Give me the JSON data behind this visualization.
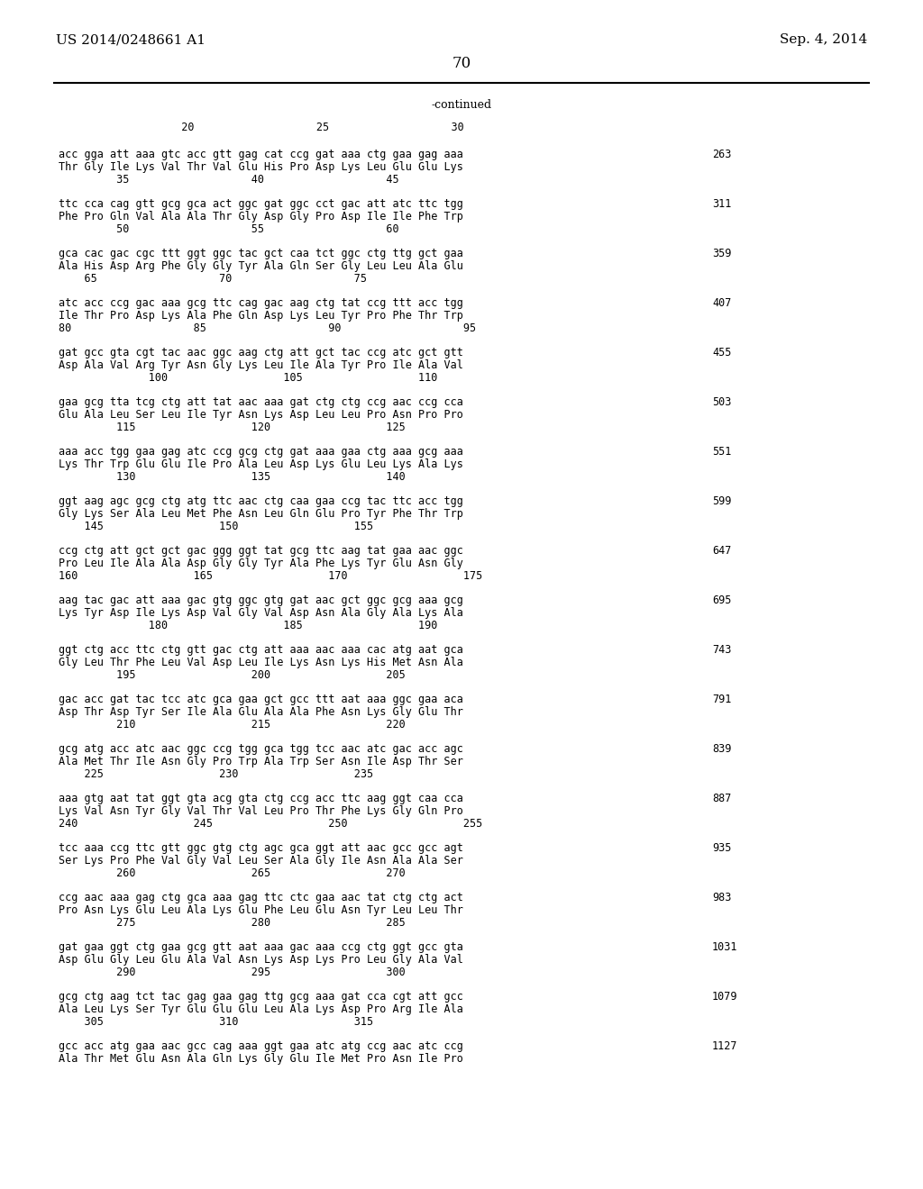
{
  "patent_number": "US 2014/0248661 A1",
  "date": "Sep. 4, 2014",
  "page_number": "70",
  "continued_label": "-continued",
  "background_color": "#ffffff",
  "text_color": "#000000",
  "ruler_numbers": "          20                   25                   30",
  "sequence_blocks": [
    {
      "dna": "acc gga att aaa gtc acc gtt gag cat ccg gat aaa ctg gaa gag aaa",
      "aa": "Thr Gly Ile Lys Val Thr Val Glu His Pro Asp Lys Leu Glu Glu Lys",
      "pos": "         35                   40                   45",
      "num": "263"
    },
    {
      "dna": "ttc cca cag gtt gcg gca act ggc gat ggc cct gac att atc ttc tgg",
      "aa": "Phe Pro Gln Val Ala Ala Thr Gly Asp Gly Pro Asp Ile Ile Phe Trp",
      "pos": "         50                   55                   60",
      "num": "311"
    },
    {
      "dna": "gca cac gac cgc ttt ggt ggc tac gct caa tct ggc ctg ttg gct gaa",
      "aa": "Ala His Asp Arg Phe Gly Gly Tyr Ala Gln Ser Gly Leu Leu Ala Glu",
      "pos": "    65                   70                   75",
      "num": "359"
    },
    {
      "dna": "atc acc ccg gac aaa gcg ttc cag gac aag ctg tat ccg ttt acc tgg",
      "aa": "Ile Thr Pro Asp Lys Ala Phe Gln Asp Lys Leu Tyr Pro Phe Thr Trp",
      "pos": "80                   85                   90                   95",
      "num": "407"
    },
    {
      "dna": "gat gcc gta cgt tac aac ggc aag ctg att gct tac ccg atc gct gtt",
      "aa": "Asp Ala Val Arg Tyr Asn Gly Lys Leu Ile Ala Tyr Pro Ile Ala Val",
      "pos": "              100                  105                  110",
      "num": "455"
    },
    {
      "dna": "gaa gcg tta tcg ctg att tat aac aaa gat ctg ctg ccg aac ccg cca",
      "aa": "Glu Ala Leu Ser Leu Ile Tyr Asn Lys Asp Leu Leu Pro Asn Pro Pro",
      "pos": "         115                  120                  125",
      "num": "503"
    },
    {
      "dna": "aaa acc tgg gaa gag atc ccg gcg ctg gat aaa gaa ctg aaa gcg aaa",
      "aa": "Lys Thr Trp Glu Glu Ile Pro Ala Leu Asp Lys Glu Leu Lys Ala Lys",
      "pos": "         130                  135                  140",
      "num": "551"
    },
    {
      "dna": "ggt aag agc gcg ctg atg ttc aac ctg caa gaa ccg tac ttc acc tgg",
      "aa": "Gly Lys Ser Ala Leu Met Phe Asn Leu Gln Glu Pro Tyr Phe Thr Trp",
      "pos": "    145                  150                  155",
      "num": "599"
    },
    {
      "dna": "ccg ctg att gct gct gac ggg ggt tat gcg ttc aag tat gaa aac ggc",
      "aa": "Pro Leu Ile Ala Ala Asp Gly Gly Tyr Ala Phe Lys Tyr Glu Asn Gly",
      "pos": "160                  165                  170                  175",
      "num": "647"
    },
    {
      "dna": "aag tac gac att aaa gac gtg ggc gtg gat aac gct ggc gcg aaa gcg",
      "aa": "Lys Tyr Asp Ile Lys Asp Val Gly Val Asp Asn Ala Gly Ala Lys Ala",
      "pos": "              180                  185                  190",
      "num": "695"
    },
    {
      "dna": "ggt ctg acc ttc ctg gtt gac ctg att aaa aac aaa cac atg aat gca",
      "aa": "Gly Leu Thr Phe Leu Val Asp Leu Ile Lys Asn Lys His Met Asn Ala",
      "pos": "         195                  200                  205",
      "num": "743"
    },
    {
      "dna": "gac acc gat tac tcc atc gca gaa gct gcc ttt aat aaa ggc gaa aca",
      "aa": "Asp Thr Asp Tyr Ser Ile Ala Glu Ala Ala Phe Asn Lys Gly Glu Thr",
      "pos": "         210                  215                  220",
      "num": "791"
    },
    {
      "dna": "gcg atg acc atc aac ggc ccg tgg gca tgg tcc aac atc gac acc agc",
      "aa": "Ala Met Thr Ile Asn Gly Pro Trp Ala Trp Ser Asn Ile Asp Thr Ser",
      "pos": "    225                  230                  235",
      "num": "839"
    },
    {
      "dna": "aaa gtg aat tat ggt gta acg gta ctg ccg acc ttc aag ggt caa cca",
      "aa": "Lys Val Asn Tyr Gly Val Thr Val Leu Pro Thr Phe Lys Gly Gln Pro",
      "pos": "240                  245                  250                  255",
      "num": "887"
    },
    {
      "dna": "tcc aaa ccg ttc gtt ggc gtg ctg agc gca ggt att aac gcc gcc agt",
      "aa": "Ser Lys Pro Phe Val Gly Val Leu Ser Ala Gly Ile Asn Ala Ala Ser",
      "pos": "         260                  265                  270",
      "num": "935"
    },
    {
      "dna": "ccg aac aaa gag ctg gca aaa gag ttc ctc gaa aac tat ctg ctg act",
      "aa": "Pro Asn Lys Glu Leu Ala Lys Glu Phe Leu Glu Asn Tyr Leu Leu Thr",
      "pos": "         275                  280                  285",
      "num": "983"
    },
    {
      "dna": "gat gaa ggt ctg gaa gcg gtt aat aaa gac aaa ccg ctg ggt gcc gta",
      "aa": "Asp Glu Gly Leu Glu Ala Val Asn Lys Asp Lys Pro Leu Gly Ala Val",
      "pos": "         290                  295                  300",
      "num": "1031"
    },
    {
      "dna": "gcg ctg aag tct tac gag gaa gag ttg gcg aaa gat cca cgt att gcc",
      "aa": "Ala Leu Lys Ser Tyr Glu Glu Glu Leu Ala Lys Asp Pro Arg Ile Ala",
      "pos": "    305                  310                  315",
      "num": "1079"
    },
    {
      "dna": "gcc acc atg gaa aac gcc cag aaa ggt gaa atc atg ccg aac atc ccg",
      "aa": "Ala Thr Met Glu Asn Ala Gln Lys Gly Glu Ile Met Pro Asn Ile Pro",
      "pos": "",
      "num": "1127"
    }
  ]
}
